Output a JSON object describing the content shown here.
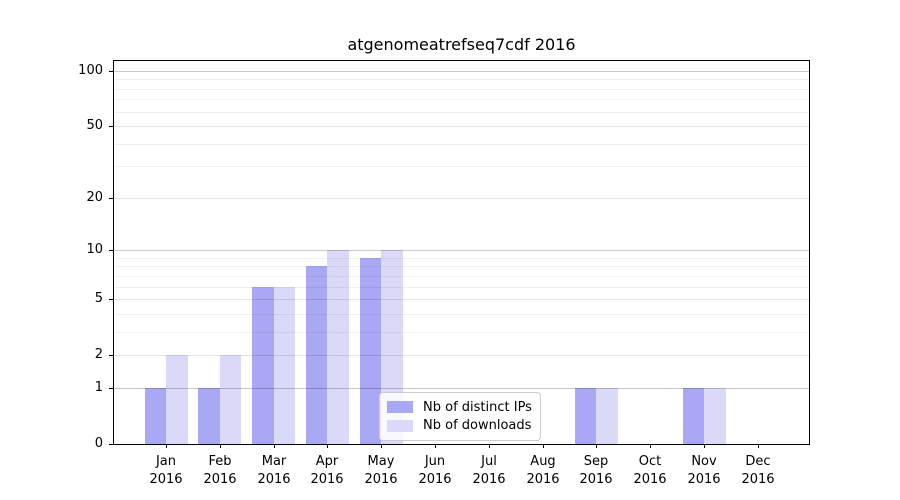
{
  "chart_data": {
    "type": "bar",
    "title": "atgenomeatrefseq7cdf 2016",
    "x_tick_months": [
      "Jan",
      "Feb",
      "Mar",
      "Apr",
      "May",
      "Jun",
      "Jul",
      "Aug",
      "Sep",
      "Oct",
      "Nov",
      "Dec"
    ],
    "x_tick_year": "2016",
    "series": [
      {
        "name": "Nb of distinct IPs",
        "color": "#a8a8f5",
        "values": [
          1,
          1,
          6,
          8,
          9,
          0,
          0,
          0,
          1,
          0,
          1,
          0
        ]
      },
      {
        "name": "Nb of downloads",
        "color": "#dadaf8",
        "values": [
          2,
          2,
          6,
          10,
          10,
          0,
          0,
          0,
          1,
          0,
          1,
          0
        ]
      }
    ],
    "y_scale": "log1p",
    "ylim": [
      0,
      113
    ],
    "y_major_ticks": [
      0,
      1,
      2,
      5,
      10,
      20,
      50,
      100
    ],
    "y_minor_ticks": [
      3,
      4,
      6,
      7,
      8,
      9,
      30,
      40,
      60,
      70,
      80,
      90
    ],
    "y_strong_grid": [
      1,
      10,
      100
    ],
    "grid": true,
    "legend_position": "lower-center",
    "colors": {
      "axis": "#000000",
      "text": "#000000",
      "grid_strong": "rgba(0,0,0,0.21)",
      "grid_mid": "rgba(0,0,0,0.11)",
      "grid_minor": "rgba(0,0,0,0.06)",
      "legend_border": "#cccccc",
      "legend_bg": "rgba(255,255,255,0.8)"
    }
  }
}
